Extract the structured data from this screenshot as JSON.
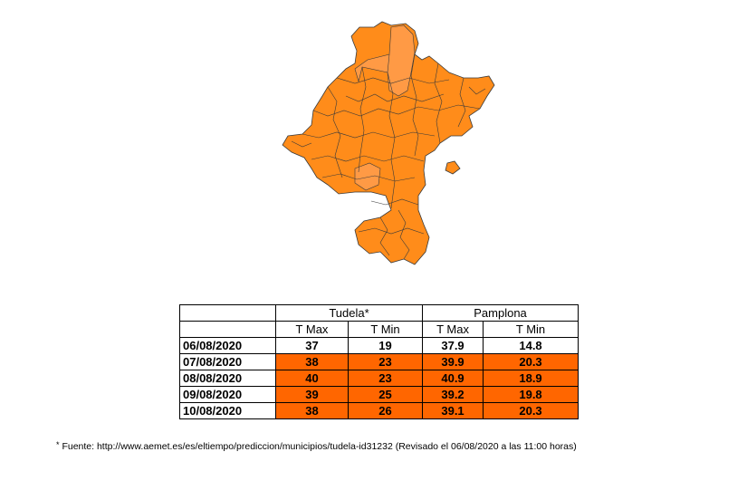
{
  "map": {
    "region_fill": "#ff8c1a",
    "highlight_fill": "#ff9a45",
    "border_color": "#3a3a3a"
  },
  "table": {
    "groups": [
      "Tudela*",
      "Pamplona"
    ],
    "subheaders": [
      "T Max",
      "T Min",
      "T Max",
      "T Min"
    ],
    "highlight_color": "#ff6600",
    "rows": [
      {
        "date": "06/08/2020",
        "tudela_max": "37",
        "tudela_min": "19",
        "pamplona_max": "37.9",
        "pamplona_min": "14.8",
        "highlighted": false
      },
      {
        "date": "07/08/2020",
        "tudela_max": "38",
        "tudela_min": "23",
        "pamplona_max": "39.9",
        "pamplona_min": "20.3",
        "highlighted": true
      },
      {
        "date": "08/08/2020",
        "tudela_max": "40",
        "tudela_min": "23",
        "pamplona_max": "40.9",
        "pamplona_min": "18.9",
        "highlighted": true
      },
      {
        "date": "09/08/2020",
        "tudela_max": "39",
        "tudela_min": "25",
        "pamplona_max": "39.2",
        "pamplona_min": "19.8",
        "highlighted": true
      },
      {
        "date": "10/08/2020",
        "tudela_max": "38",
        "tudela_min": "26",
        "pamplona_max": "39.1",
        "pamplona_min": "20.3",
        "highlighted": true
      }
    ]
  },
  "footnote": {
    "marker": "*",
    "text": "Fuente: http://www.aemet.es/es/eltiempo/prediccion/municipios/tudela-id31232 (Revisado el 06/08/2020 a las 11:00 horas)"
  }
}
